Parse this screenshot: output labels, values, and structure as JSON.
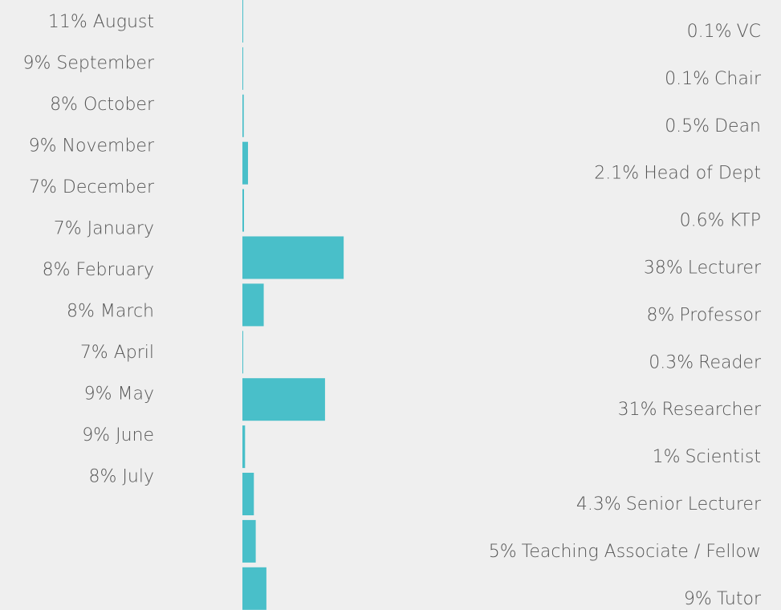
{
  "months": [
    "11% August",
    "9% September",
    "8% October",
    "9% November",
    "7% December",
    "7% January",
    "8% February",
    "8% March",
    "7% April",
    "9% May",
    "9% June",
    "8% July"
  ],
  "roles": {
    "color": "#49bfc9",
    "items": [
      {
        "value": 0.1,
        "value_label": "0.1%",
        "label": "VC"
      },
      {
        "value": 0.1,
        "value_label": "0.1%",
        "label": "Chair"
      },
      {
        "value": 0.5,
        "value_label": "0.5%",
        "label": "Dean"
      },
      {
        "value": 2.1,
        "value_label": "2.1%",
        "label": "Head of Dept"
      },
      {
        "value": 0.6,
        "value_label": "0.6%",
        "label": "KTP"
      },
      {
        "value": 38,
        "value_label": "38%",
        "label": "Lecturer"
      },
      {
        "value": 8,
        "value_label": "8%",
        "label": "Professor"
      },
      {
        "value": 0.3,
        "value_label": "0.3%",
        "label": "Reader"
      },
      {
        "value": 31,
        "value_label": "31%",
        "label": "Researcher"
      },
      {
        "value": 1,
        "value_label": "1%",
        "label": "Scientist"
      },
      {
        "value": 4.3,
        "value_label": "4.3%",
        "label": "Senior Lecturer"
      },
      {
        "value": 5,
        "value_label": "5%",
        "label": "Teaching Associate / Fellow"
      },
      {
        "value": 9,
        "value_label": "9%",
        "label": "Tutor"
      }
    ]
  }
}
